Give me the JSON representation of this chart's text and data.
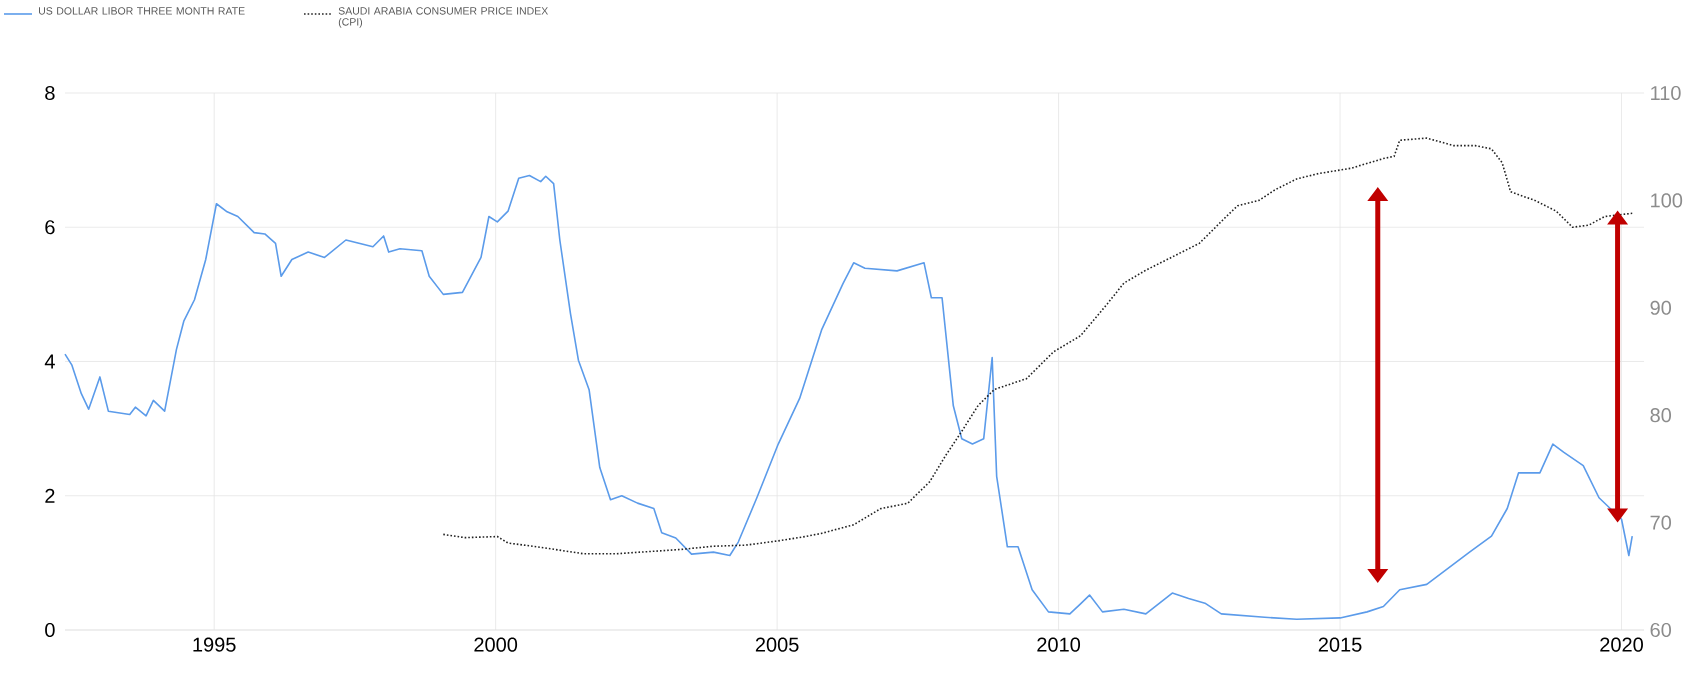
{
  "chart_data": {
    "type": "line",
    "legend": "top left",
    "grid": true,
    "marker": "none",
    "xlim": [
      1992.35,
      2020.4
    ],
    "xticks": [
      1995,
      2000,
      2005,
      2010,
      2015,
      2020
    ],
    "ylim": [
      0,
      8
    ],
    "yticks": [
      0,
      2,
      4,
      6,
      8
    ],
    "y2lim": [
      60,
      110
    ],
    "y2ticks": [
      60,
      70,
      80,
      90,
      100,
      110
    ],
    "series": [
      {
        "name": "US DOLLAR LIBOR THREE MONTH RATE",
        "color": "#5b9bea",
        "line_style": "solid",
        "x": [
          1992.35,
          1992.47,
          1992.64,
          1992.77,
          1992.97,
          1993.12,
          1993.5,
          1993.6,
          1993.79,
          1993.92,
          1994.12,
          1994.33,
          1994.46,
          1994.65,
          1994.85,
          1995.04,
          1995.23,
          1995.42,
          1995.71,
          1995.9,
          1996.09,
          1996.19,
          1996.38,
          1996.67,
          1996.96,
          1997.34,
          1997.82,
          1998.01,
          1998.1,
          1998.3,
          1998.69,
          1998.82,
          1999.07,
          1999.41,
          1999.74,
          1999.88,
          2000.03,
          2000.22,
          2000.41,
          2000.6,
          2000.8,
          2000.89,
          2001.03,
          2001.14,
          2001.33,
          2001.47,
          2001.66,
          2001.85,
          2002.04,
          2002.24,
          2002.52,
          2002.81,
          2002.95,
          2003.2,
          2003.48,
          2003.87,
          2004.16,
          2004.31,
          2004.64,
          2005.02,
          2005.4,
          2005.79,
          2006.17,
          2006.36,
          2006.56,
          2007.13,
          2007.61,
          2007.74,
          2007.93,
          2008.13,
          2008.28,
          2008.47,
          2008.67,
          2008.82,
          2008.9,
          2009.09,
          2009.28,
          2009.53,
          2009.82,
          2010.2,
          2010.39,
          2010.55,
          2010.78,
          2011.16,
          2011.55,
          2012.02,
          2012.31,
          2012.6,
          2012.89,
          2013.66,
          2014.23,
          2015.0,
          2015.48,
          2015.77,
          2016.06,
          2016.54,
          2016.92,
          2017.3,
          2017.69,
          2017.97,
          2018.17,
          2018.55,
          2018.78,
          2018.97,
          2019.32,
          2019.6,
          2019.8,
          2020.0,
          2020.13,
          2020.19
        ],
        "values": [
          4.11,
          3.95,
          3.52,
          3.29,
          3.77,
          3.26,
          3.21,
          3.32,
          3.19,
          3.42,
          3.26,
          4.18,
          4.6,
          4.92,
          5.52,
          6.35,
          6.23,
          6.16,
          5.92,
          5.9,
          5.76,
          5.27,
          5.52,
          5.63,
          5.55,
          5.81,
          5.71,
          5.87,
          5.63,
          5.68,
          5.65,
          5.27,
          5.0,
          5.03,
          5.55,
          6.16,
          6.08,
          6.24,
          6.73,
          6.77,
          6.68,
          6.76,
          6.65,
          5.81,
          4.71,
          4.02,
          3.58,
          2.42,
          1.94,
          2.0,
          1.89,
          1.81,
          1.45,
          1.37,
          1.13,
          1.16,
          1.11,
          1.31,
          1.97,
          2.77,
          3.45,
          4.47,
          5.16,
          5.47,
          5.39,
          5.35,
          5.47,
          4.95,
          4.95,
          3.34,
          2.85,
          2.77,
          2.85,
          4.06,
          2.29,
          1.24,
          1.24,
          0.6,
          0.27,
          0.24,
          0.39,
          0.52,
          0.27,
          0.31,
          0.24,
          0.55,
          0.47,
          0.4,
          0.24,
          0.19,
          0.16,
          0.18,
          0.27,
          0.35,
          0.6,
          0.68,
          0.92,
          1.16,
          1.4,
          1.81,
          2.34,
          2.34,
          2.77,
          2.65,
          2.45,
          1.97,
          1.81,
          1.65,
          1.11,
          1.4
        ]
      },
      {
        "name": "SAUDI ARABIA CONSUMER PRICE INDEX (CPI)",
        "color": "#222222",
        "line_style": "dotted",
        "axis": "y2",
        "x": [
          1999.07,
          1999.45,
          2000.03,
          2000.22,
          2000.8,
          2001.56,
          2002.14,
          2002.72,
          2003.29,
          2003.87,
          2004.44,
          2005.02,
          2005.5,
          2005.79,
          2006.36,
          2006.84,
          2007.32,
          2007.71,
          2008.0,
          2008.28,
          2008.57,
          2008.86,
          2009.43,
          2009.91,
          2010.39,
          2010.87,
          2011.16,
          2011.55,
          2012.12,
          2012.5,
          2012.98,
          2013.18,
          2013.56,
          2013.85,
          2014.23,
          2014.62,
          2015.2,
          2015.77,
          2015.96,
          2016.06,
          2016.54,
          2017.02,
          2017.4,
          2017.69,
          2017.88,
          2018.03,
          2018.46,
          2018.84,
          2019.13,
          2019.42,
          2019.7,
          2020.19
        ],
        "values": [
          68.9,
          68.6,
          68.7,
          68.1,
          67.7,
          67.1,
          67.1,
          67.3,
          67.5,
          67.8,
          67.9,
          68.3,
          68.7,
          69.0,
          69.8,
          71.3,
          71.8,
          73.8,
          76.3,
          78.5,
          80.9,
          82.4,
          83.4,
          85.9,
          87.4,
          90.4,
          92.3,
          93.5,
          95.0,
          96.0,
          98.5,
          99.5,
          100.0,
          101.0,
          102.0,
          102.5,
          103.0,
          103.9,
          104.1,
          105.6,
          105.8,
          105.1,
          105.1,
          104.8,
          103.5,
          100.8,
          100.0,
          99.0,
          97.5,
          97.7,
          98.5,
          98.8
        ]
      }
    ]
  }
}
